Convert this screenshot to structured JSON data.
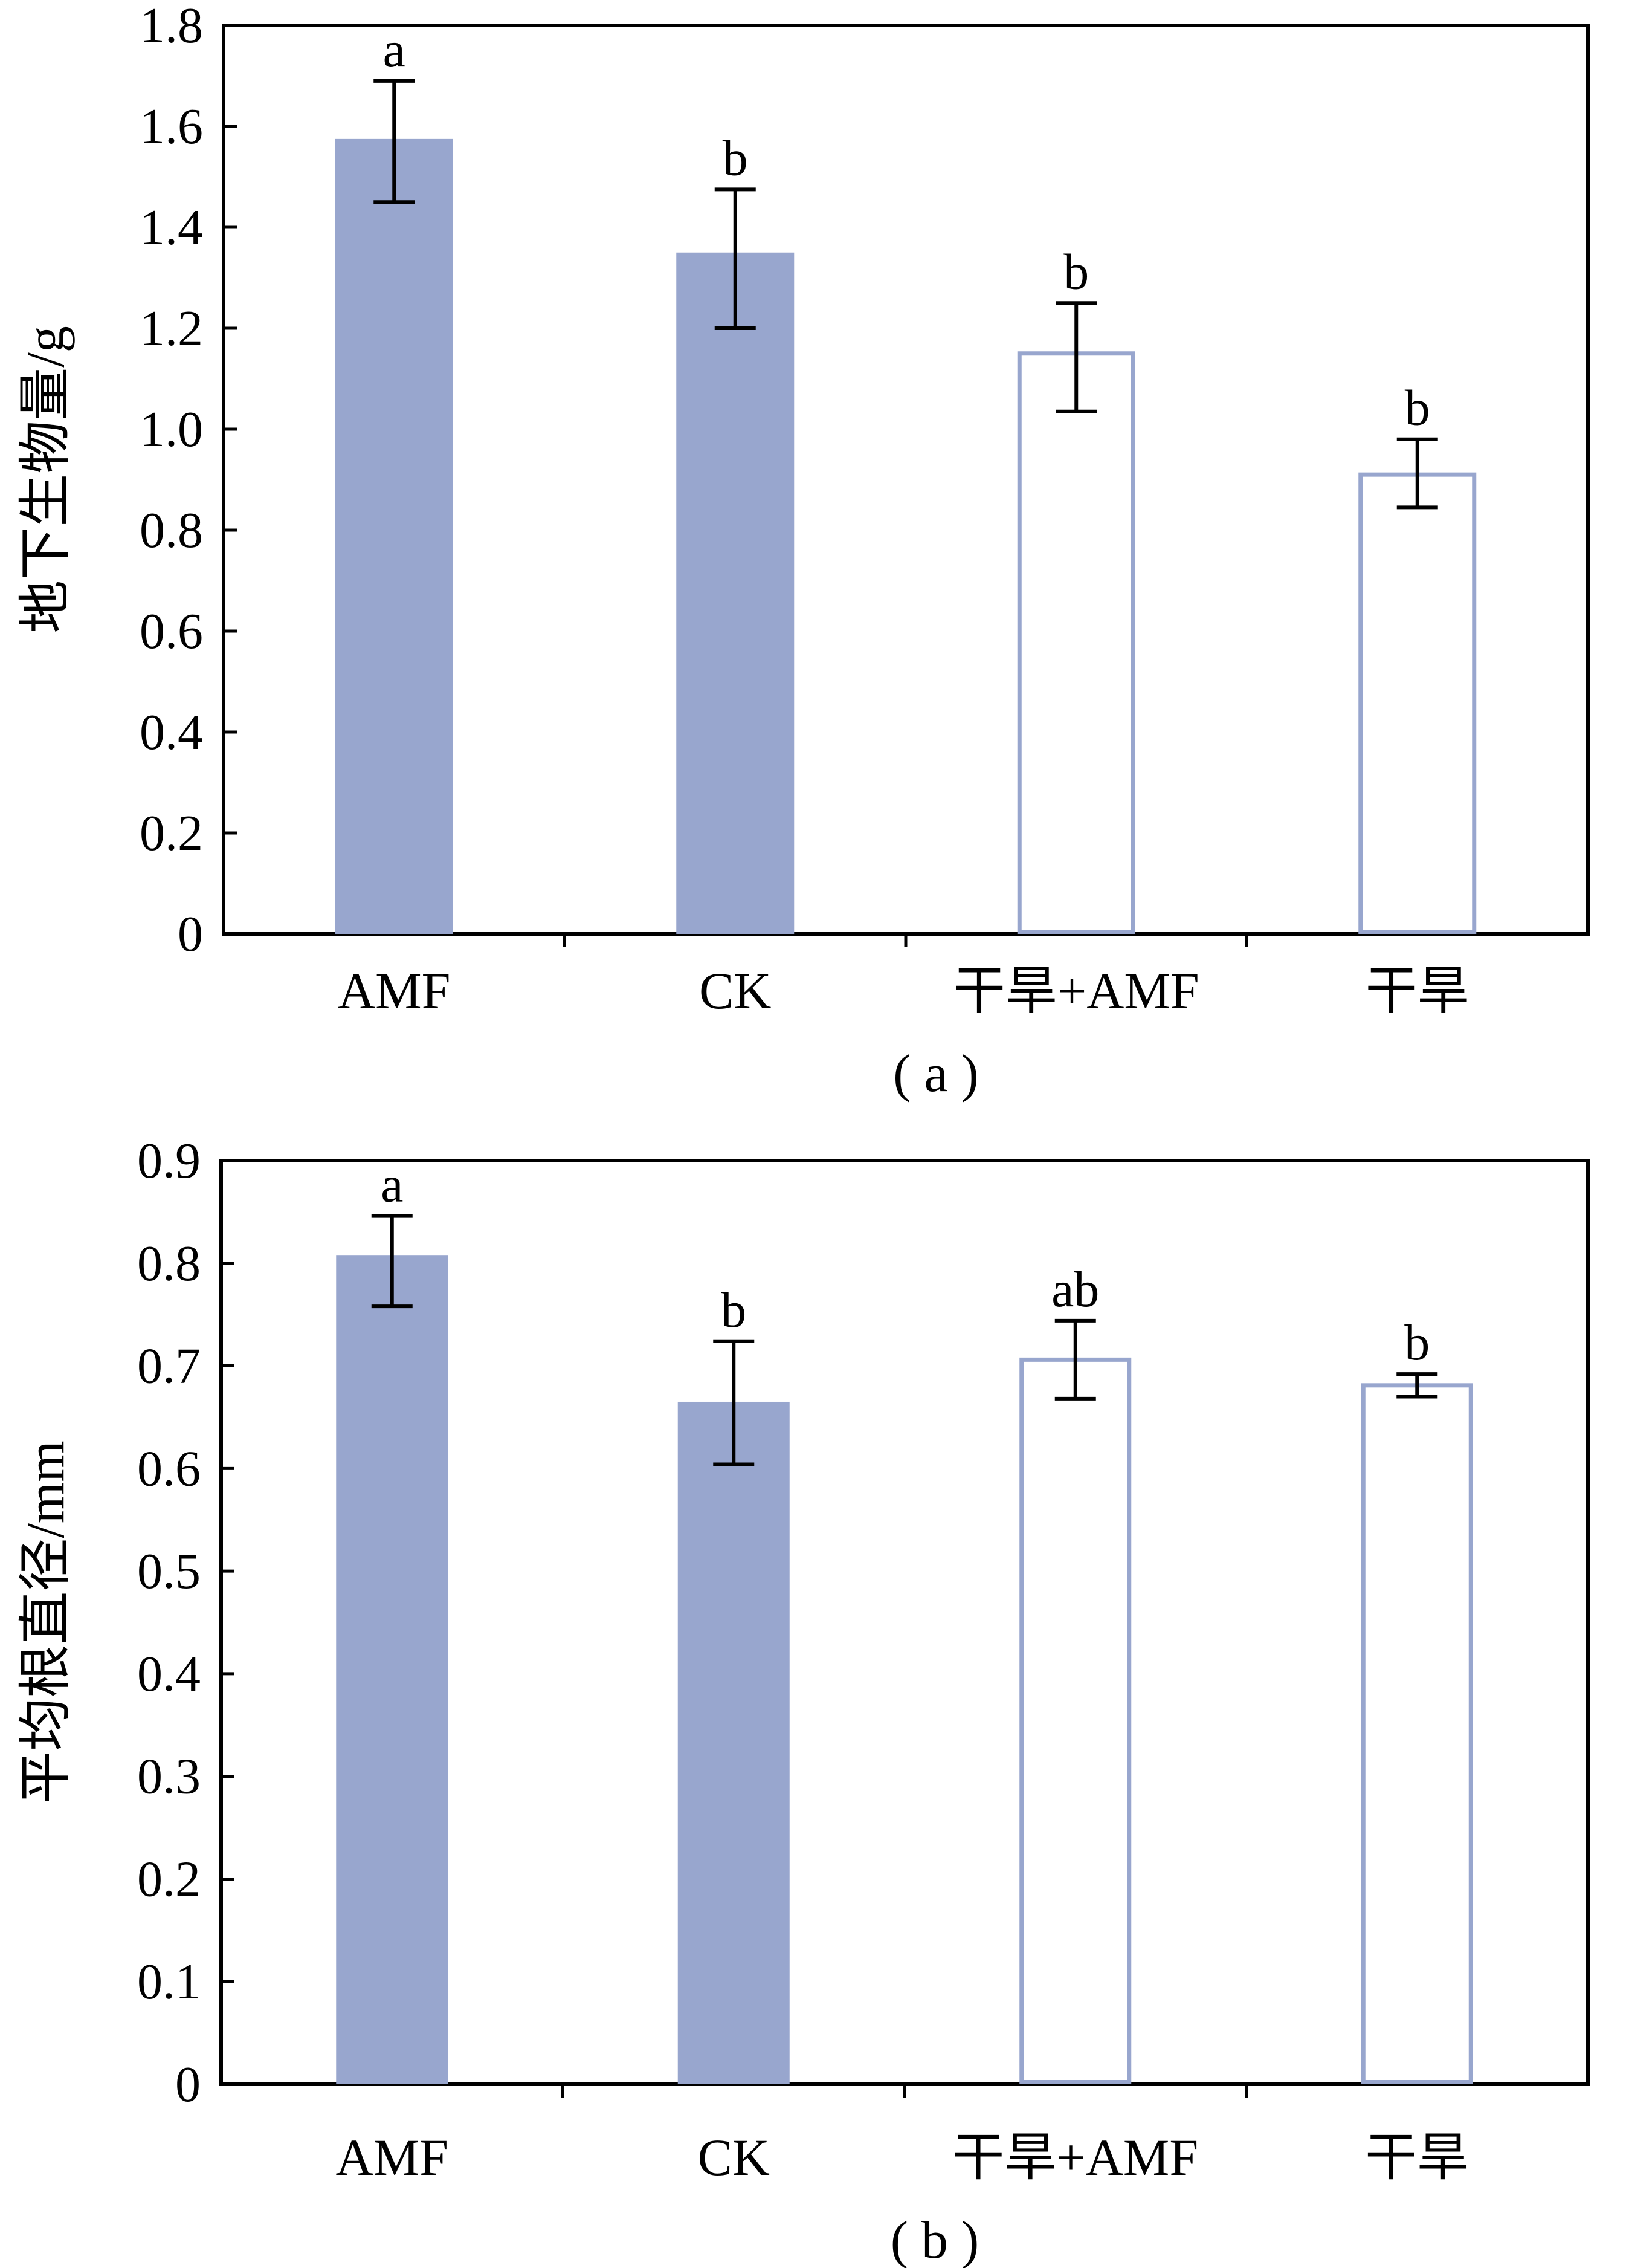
{
  "chart_data": [
    {
      "type": "bar",
      "panel_label": "( a )",
      "ylabel": "地下生物量/g",
      "categories": [
        "AMF",
        "CK",
        "干旱+AMF",
        "干旱"
      ],
      "values": [
        1.575,
        1.35,
        1.15,
        0.91
      ],
      "error_low": [
        1.45,
        1.2,
        1.035,
        0.845
      ],
      "error_high": [
        1.69,
        1.475,
        1.25,
        0.98
      ],
      "significance": [
        "a",
        "b",
        "b",
        "b"
      ],
      "filled": [
        true,
        true,
        false,
        false
      ],
      "ylim": [
        0,
        1.8
      ],
      "yticks": [
        "0",
        "0.2",
        "0.4",
        "0.6",
        "0.8",
        "1.0",
        "1.2",
        "1.4",
        "1.6",
        "1.8"
      ],
      "grid": false
    },
    {
      "type": "bar",
      "panel_label": "( b )",
      "ylabel": "平均根直径/mm",
      "categories": [
        "AMF",
        "CK",
        "干旱+AMF",
        "干旱"
      ],
      "values": [
        0.808,
        0.665,
        0.706,
        0.681
      ],
      "error_low": [
        0.758,
        0.604,
        0.668,
        0.67
      ],
      "error_high": [
        0.846,
        0.724,
        0.744,
        0.692
      ],
      "significance": [
        "a",
        "b",
        "ab",
        "b"
      ],
      "filled": [
        true,
        true,
        false,
        false
      ],
      "ylim": [
        0,
        0.9
      ],
      "yticks": [
        "0",
        "0.1",
        "0.2",
        "0.3",
        "0.4",
        "0.5",
        "0.6",
        "0.7",
        "0.8",
        "0.9"
      ],
      "grid": false
    }
  ],
  "colors": {
    "bar": "#98a6ce",
    "axis": "#000000",
    "error_bar": "#000000",
    "background": "#ffffff"
  }
}
